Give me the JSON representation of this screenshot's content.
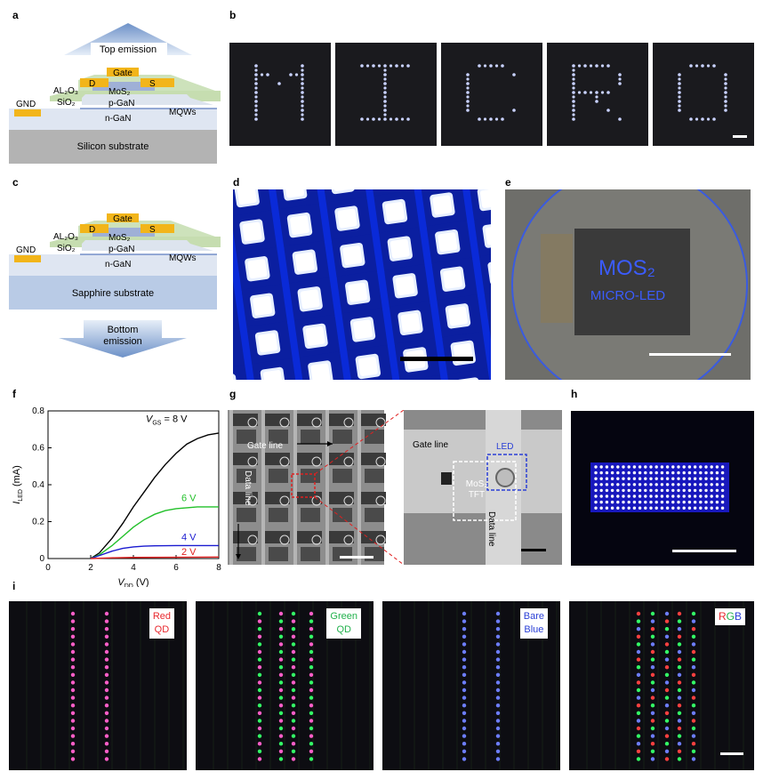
{
  "panel_labels": {
    "a": "a",
    "b": "b",
    "c": "c",
    "d": "d",
    "e": "e",
    "f": "f",
    "g": "g",
    "h": "h",
    "i": "i"
  },
  "a": {
    "top_emission": "Top emission",
    "gate": "Gate",
    "d": "D",
    "s": "S",
    "al2o3": "AL₂O₃",
    "sio2": "SiO₂",
    "mos2": "MoS₂",
    "pgan": "p-GaN",
    "ngan": "n-GaN",
    "mqws": "MQWs",
    "gnd": "GND",
    "substrate": "Silicon substrate"
  },
  "b": {
    "letters": [
      "M",
      "I",
      "C",
      "R",
      "O"
    ]
  },
  "c": {
    "gate": "Gate",
    "d": "D",
    "s": "S",
    "al2o3": "AL₂O₃",
    "sio2": "SiO₂",
    "mos2": "MoS₂",
    "pgan": "p-GaN",
    "ngan": "n-GaN",
    "mqws": "MQWs",
    "gnd": "GND",
    "substrate": "Sapphire substrate",
    "bottom_emission_1": "Bottom",
    "bottom_emission_2": "emission"
  },
  "e": {
    "line1": "MOS₂",
    "line2": "MICRO-LED"
  },
  "g": {
    "gate_line": "Gate line",
    "data_line": "Data line",
    "zoom_gate_line": "Gate line",
    "zoom_led": "LED",
    "zoom_mos2": "MoS₂",
    "zoom_tft": "TFT",
    "zoom_data_line": "Data line"
  },
  "i": {
    "panels": [
      {
        "line1": "Red",
        "line2": "QD",
        "color1": "#e8282e",
        "color2": "#e8282e"
      },
      {
        "line1": "Green",
        "line2": "QD",
        "color1": "#22b14c",
        "color2": "#22b14c"
      },
      {
        "line1": "Bare",
        "line2": "Blue",
        "color1": "#2a3fd6",
        "color2": "#2a3fd6"
      },
      {
        "line1": "RGB",
        "line2": "",
        "color1": "#000000",
        "color2": "#000000"
      }
    ]
  },
  "chart_data": {
    "type": "line",
    "title": "",
    "xlabel": "V_DD (V)",
    "ylabel": "I_LED (mA)",
    "xlim": [
      0,
      8
    ],
    "ylim": [
      0,
      0.8
    ],
    "xticks": [
      0,
      2,
      4,
      6,
      8
    ],
    "yticks": [
      0,
      0.2,
      0.4,
      0.6,
      0.8
    ],
    "series": [
      {
        "name": "V_GS = 8 V",
        "color": "#000000",
        "x": [
          2.0,
          2.4,
          3.0,
          3.5,
          4.0,
          4.5,
          5.0,
          5.5,
          6.0,
          6.5,
          7.0,
          7.5,
          8.0
        ],
        "values": [
          0.0,
          0.03,
          0.11,
          0.19,
          0.28,
          0.36,
          0.44,
          0.51,
          0.57,
          0.62,
          0.65,
          0.67,
          0.68
        ]
      },
      {
        "name": "6 V",
        "color": "#22c02a",
        "x": [
          2.0,
          2.4,
          3.0,
          3.5,
          4.0,
          4.5,
          5.0,
          5.5,
          6.0,
          6.5,
          7.0,
          7.5,
          8.0
        ],
        "values": [
          0.0,
          0.02,
          0.07,
          0.12,
          0.17,
          0.21,
          0.24,
          0.26,
          0.27,
          0.275,
          0.28,
          0.28,
          0.28
        ]
      },
      {
        "name": "4 V",
        "color": "#1a1ad0",
        "x": [
          2.0,
          2.5,
          3.0,
          3.5,
          4.0,
          4.5,
          5.0,
          6.0,
          7.0,
          8.0
        ],
        "values": [
          0.0,
          0.02,
          0.04,
          0.055,
          0.063,
          0.067,
          0.069,
          0.07,
          0.07,
          0.07
        ]
      },
      {
        "name": "2 V",
        "color": "#e02020",
        "x": [
          2.0,
          3.0,
          4.0,
          6.0,
          8.0
        ],
        "values": [
          0.0,
          0.004,
          0.006,
          0.007,
          0.008
        ]
      }
    ],
    "annotations": [
      {
        "series": 0,
        "text_prefix": "V",
        "text_sub": "GS",
        "text_suffix": " = 8 V"
      },
      {
        "series": 1,
        "text": "6 V"
      },
      {
        "series": 2,
        "text": "4 V"
      },
      {
        "series": 3,
        "text": "2 V"
      }
    ]
  }
}
